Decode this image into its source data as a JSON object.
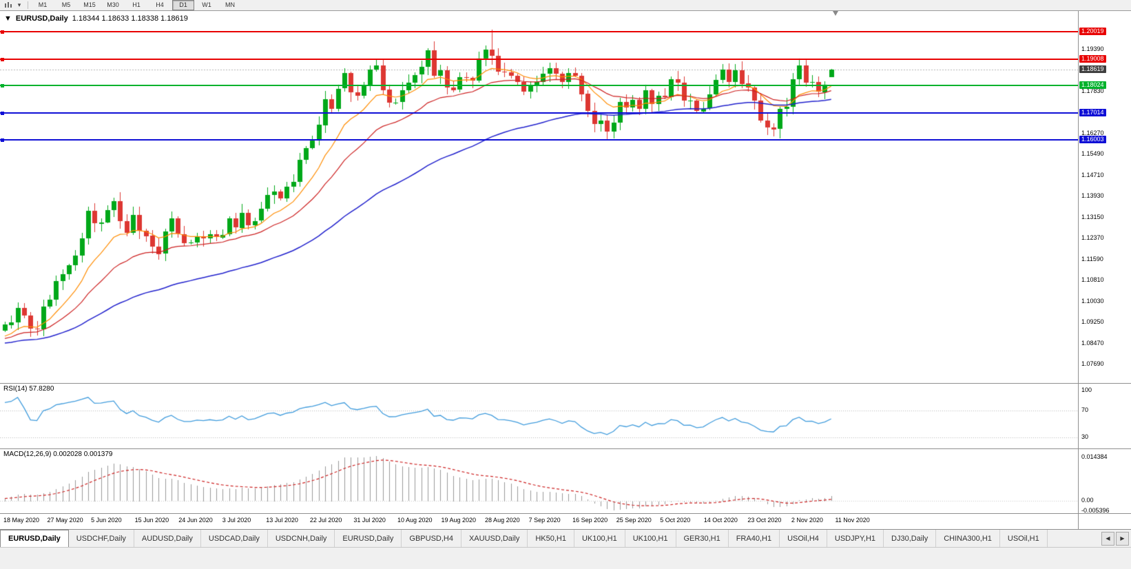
{
  "toolbar": {
    "timeframes": [
      "M1",
      "M5",
      "M15",
      "M30",
      "H1",
      "H4",
      "D1",
      "W1",
      "MN"
    ],
    "active_timeframe": "D1",
    "icons": [
      {
        "name": "chart-type-icon"
      },
      {
        "name": "dropdown-arrow-icon",
        "glyph": "▾"
      }
    ]
  },
  "chart_header": {
    "collapse_glyph": "▼",
    "symbol": "EURUSD,Daily",
    "ohlc": "1.18344 1.18633 1.18338 1.18619"
  },
  "chart_data": {
    "type": "candlestick",
    "symbol": "EURUSD",
    "timeframe": "Daily",
    "closes": [
      1.0915,
      1.0924,
      1.0977,
      1.0949,
      1.0901,
      1.0898,
      1.0982,
      1.1007,
      1.1076,
      1.1101,
      1.1134,
      1.117,
      1.1234,
      1.1337,
      1.1291,
      1.1295,
      1.134,
      1.1373,
      1.13,
      1.1256,
      1.1323,
      1.1264,
      1.1244,
      1.1204,
      1.1177,
      1.126,
      1.1308,
      1.1251,
      1.1218,
      1.1219,
      1.1242,
      1.1234,
      1.125,
      1.1239,
      1.1248,
      1.1308,
      1.1274,
      1.133,
      1.1284,
      1.13,
      1.1344,
      1.1396,
      1.141,
      1.1384,
      1.1427,
      1.1446,
      1.1527,
      1.1571,
      1.1598,
      1.1656,
      1.1752,
      1.1717,
      1.1791,
      1.1848,
      1.1776,
      1.1763,
      1.1802,
      1.1862,
      1.1878,
      1.1787,
      1.1738,
      1.174,
      1.1784,
      1.1813,
      1.1842,
      1.1871,
      1.1933,
      1.1839,
      1.1859,
      1.1796,
      1.1786,
      1.1833,
      1.1831,
      1.182,
      1.1903,
      1.1936,
      1.1912,
      1.1854,
      1.1851,
      1.1838,
      1.1816,
      1.1779,
      1.1802,
      1.1815,
      1.1845,
      1.1866,
      1.1846,
      1.1815,
      1.1848,
      1.1839,
      1.1771,
      1.1707,
      1.1659,
      1.1672,
      1.1631,
      1.1665,
      1.1742,
      1.1721,
      1.1748,
      1.1716,
      1.1784,
      1.1733,
      1.1764,
      1.176,
      1.1826,
      1.1812,
      1.1745,
      1.1746,
      1.1708,
      1.1717,
      1.1769,
      1.1823,
      1.1862,
      1.1816,
      1.186,
      1.181,
      1.1795,
      1.1746,
      1.1673,
      1.1647,
      1.164,
      1.1715,
      1.1723,
      1.1826,
      1.1876,
      1.1813,
      1.1815,
      1.1778,
      1.1805,
      1.18619
    ],
    "spike": {
      "index": 76,
      "high": 1.2011
    },
    "current_ohlc": {
      "open": 1.18344,
      "high": 1.18633,
      "low": 1.18338,
      "close": 1.18619
    },
    "current_price": {
      "value": 1.18619,
      "label": "1.18619"
    },
    "moving_averages": [
      {
        "period": 10,
        "color": "#ff8c00"
      },
      {
        "period": 21,
        "color": "#cc1f1f"
      },
      {
        "period": 55,
        "color": "#1f1fcc"
      }
    ],
    "horizontal_lines": [
      {
        "price": 1.20019,
        "label": "1.20019",
        "color": "#e80000"
      },
      {
        "price": 1.19008,
        "label": "1.19008",
        "color": "#e80000"
      },
      {
        "price": 1.18024,
        "label": "1.18024",
        "color": "#00b22c"
      },
      {
        "price": 1.17014,
        "label": "1.17014",
        "color": "#0f0fd6"
      },
      {
        "price": 1.16003,
        "label": "1.16003",
        "color": "#0f0fd6"
      }
    ],
    "price_axis_ticks": [
      "1.19390",
      "1.17830",
      "1.16270",
      "1.15490",
      "1.14710",
      "1.13930",
      "1.13150",
      "1.12370",
      "1.11590",
      "1.10810",
      "1.10030",
      "1.09250",
      "1.08470",
      "1.07690"
    ],
    "date_labels": [
      "18 May 2020",
      "27 May 2020",
      "5 Jun 2020",
      "15 Jun 2020",
      "24 Jun 2020",
      "3 Jul 2020",
      "13 Jul 2020",
      "22 Jul 2020",
      "31 Jul 2020",
      "10 Aug 2020",
      "19 Aug 2020",
      "28 Aug 2020",
      "7 Sep 2020",
      "16 Sep 2020",
      "25 Sep 2020",
      "5 Oct 2020",
      "14 Oct 2020",
      "23 Oct 2020",
      "2 Nov 2020",
      "11 Nov 2020"
    ]
  },
  "rsi": {
    "label": "RSI(14) 57.8280",
    "period": 14,
    "value": 57.828,
    "levels": [
      "100",
      "70",
      "30"
    ]
  },
  "macd": {
    "label": "MACD(12,26,9) 0.002028 0.001379",
    "params": [
      12,
      26,
      9
    ],
    "values": [
      0.002028,
      0.001379
    ],
    "axis": [
      "0.014384",
      "0.00",
      "-0.005396"
    ]
  },
  "tabs": {
    "active_index": 0,
    "items": [
      "EURUSD,Daily",
      "USDCHF,Daily",
      "AUDUSD,Daily",
      "USDCAD,Daily",
      "USDCNH,Daily",
      "EURUSD,Daily",
      "GBPUSD,H4",
      "XAUUSD,Daily",
      "HK50,H1",
      "UK100,H1",
      "UK100,H1",
      "GER30,H1",
      "FRA40,H1",
      "USOil,H4",
      "USDJPY,H1",
      "DJ30,Daily",
      "CHINA300,H1",
      "USOil,H1"
    ],
    "scroll_left_glyph": "◀",
    "scroll_right_glyph": "▶"
  },
  "colors": {
    "candle_up": "#00a819",
    "candle_down": "#dd3732",
    "current_tag": "#3f3f3f",
    "rsi_line": "#3f9bdc",
    "macd_hist": "#999999",
    "macd_signal": "#cc1f1f",
    "bid_line": "#b0b0b0"
  }
}
